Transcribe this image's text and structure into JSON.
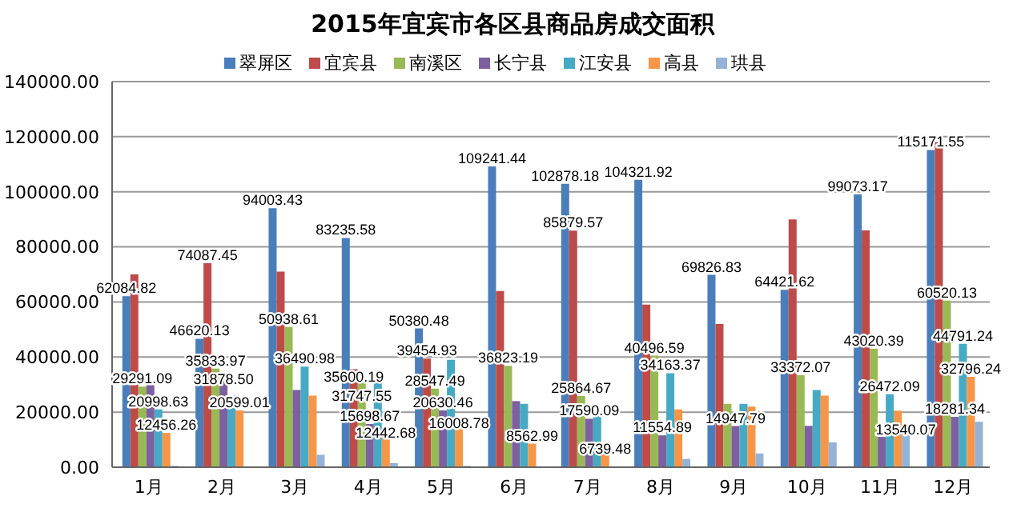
{
  "chart_data": {
    "type": "bar",
    "title": "2015年宜宾市各区县商品房成交面积",
    "categories": [
      "1月",
      "2月",
      "3月",
      "4月",
      "5月",
      "6月",
      "7月",
      "8月",
      "9月",
      "10月",
      "11月",
      "12月"
    ],
    "series": [
      {
        "name": "翠屏区",
        "color": "#4a7ebb",
        "values": [
          62084.82,
          46620.13,
          94003.43,
          83235.58,
          50380.48,
          109241.44,
          102878.18,
          104321.92,
          69826.83,
          64421.62,
          99073.17,
          115171.55
        ],
        "value_labels": [
          "62084.82",
          "46620.13",
          "94003.43",
          "83235.58",
          "50380.48",
          "109241.44",
          "102878.18",
          "104321.92",
          "69826.83",
          "64421.62",
          "99073.17",
          "115171.55"
        ]
      },
      {
        "name": "宜宾县",
        "color": "#be4b48",
        "values": [
          70000,
          74087.45,
          71000,
          35600.19,
          39454.93,
          64000,
          85879.57,
          59000,
          52000,
          90000,
          86000,
          118000
        ],
        "value_labels": [
          null,
          "74087.45",
          null,
          "35600.19",
          "39454.93",
          null,
          "85879.57",
          null,
          null,
          null,
          null,
          null
        ]
      },
      {
        "name": "南溪区",
        "color": "#98b954",
        "values": [
          29291.09,
          35833.97,
          50938.61,
          31747.55,
          28547.49,
          36823.19,
          25864.67,
          40496.59,
          23000,
          33372.07,
          43020.39,
          60520.13
        ],
        "value_labels": [
          "29291.09",
          "35833.97",
          "50938.61",
          "31747.55",
          "28547.49",
          "36823.19",
          "25864.67",
          "40496.59",
          null,
          "33372.07",
          "43020.39",
          "60520.13"
        ]
      },
      {
        "name": "长宁县",
        "color": "#7d60a0",
        "values": [
          31000,
          31878.5,
          28000,
          15698.67,
          20630.46,
          24000,
          17590.09,
          11554.89,
          14947.79,
          15000,
          11000,
          18281.34
        ],
        "value_labels": [
          null,
          "31878.50",
          null,
          "15698.67",
          "20630.46",
          null,
          "17590.09",
          "11554.89",
          "14947.79",
          null,
          null,
          "18281.34"
        ]
      },
      {
        "name": "江安县",
        "color": "#46aac5",
        "values": [
          20998.63,
          26000,
          36490.98,
          31000,
          39000,
          23000,
          20000,
          34163.37,
          23000,
          28000,
          26472.09,
          44791.24
        ],
        "value_labels": [
          "20998.63",
          null,
          "36490.98",
          null,
          null,
          null,
          null,
          "34163.37",
          null,
          null,
          "26472.09",
          "44791.24"
        ]
      },
      {
        "name": "高县",
        "color": "#f79646",
        "values": [
          12456.26,
          20599.01,
          26000,
          12442.68,
          16008.78,
          8562.99,
          6739.48,
          21000,
          22000,
          26000,
          20500,
          32796.24
        ],
        "value_labels": [
          "12456.26",
          "20599.01",
          null,
          "12442.68",
          "16008.78",
          "8562.99",
          "6739.48",
          null,
          null,
          null,
          null,
          "32796.24"
        ]
      },
      {
        "name": "珙县",
        "color": "#95b3d7",
        "values": [
          500,
          300,
          4500,
          1500,
          500,
          200,
          200,
          3000,
          5000,
          9000,
          13540.07,
          16500
        ],
        "value_labels": [
          null,
          null,
          null,
          null,
          null,
          null,
          null,
          null,
          null,
          null,
          "13540.07",
          null
        ]
      }
    ],
    "ylim": [
      0,
      140000
    ],
    "yticks": [
      {
        "value": 0,
        "label": "0.00"
      },
      {
        "value": 20000,
        "label": "20000.00"
      },
      {
        "value": 40000,
        "label": "40000.00"
      },
      {
        "value": 60000,
        "label": "60000.00"
      },
      {
        "value": 80000,
        "label": "80000.00"
      },
      {
        "value": 100000,
        "label": "100000.00"
      },
      {
        "value": 120000,
        "label": "120000.00"
      },
      {
        "value": 140000,
        "label": "140000.00"
      }
    ],
    "grid": "y",
    "legend": "top"
  }
}
